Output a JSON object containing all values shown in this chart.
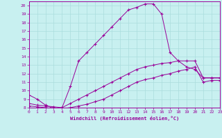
{
  "xlabel": "Windchill (Refroidissement éolien,°C)",
  "bg_color": "#c8f0f0",
  "line_color": "#990099",
  "grid_color": "#aadddd",
  "xlim": [
    0,
    23
  ],
  "ylim": [
    8,
    20.5
  ],
  "xticks": [
    0,
    1,
    2,
    3,
    4,
    5,
    6,
    7,
    8,
    9,
    10,
    11,
    12,
    13,
    14,
    15,
    16,
    17,
    18,
    19,
    20,
    21,
    22,
    23
  ],
  "yticks": [
    8,
    9,
    10,
    11,
    12,
    13,
    14,
    15,
    16,
    17,
    18,
    19,
    20
  ],
  "curve1_x": [
    0,
    1,
    2,
    3,
    4,
    5,
    6,
    7,
    8,
    9,
    10,
    11,
    12,
    13,
    14,
    15,
    16,
    17,
    18,
    19,
    20,
    21,
    22,
    23
  ],
  "curve1_y": [
    9.5,
    9.0,
    8.3,
    7.9,
    8.0,
    10.5,
    13.5,
    14.5,
    15.5,
    16.5,
    17.5,
    18.5,
    19.5,
    19.8,
    20.2,
    20.2,
    19.0,
    14.5,
    13.5,
    12.8,
    12.5,
    11.5,
    11.5,
    11.5
  ],
  "curve2_x": [
    0,
    1,
    2,
    3,
    4,
    5,
    6,
    7,
    8,
    9,
    10,
    11,
    12,
    13,
    14,
    15,
    16,
    17,
    18,
    19,
    20,
    21,
    22,
    23
  ],
  "curve2_y": [
    8.5,
    8.3,
    8.2,
    8.1,
    8.0,
    8.5,
    9.0,
    9.5,
    10.0,
    10.5,
    11.0,
    11.5,
    12.0,
    12.5,
    12.8,
    13.0,
    13.2,
    13.3,
    13.5,
    13.5,
    13.5,
    11.5,
    11.5,
    11.5
  ],
  "curve3_x": [
    0,
    1,
    2,
    3,
    4,
    5,
    6,
    7,
    8,
    9,
    10,
    11,
    12,
    13,
    14,
    15,
    16,
    17,
    18,
    19,
    20,
    21,
    22,
    23
  ],
  "curve3_y": [
    8.2,
    8.1,
    8.0,
    7.9,
    7.9,
    8.0,
    8.2,
    8.4,
    8.7,
    9.0,
    9.5,
    10.0,
    10.5,
    11.0,
    11.3,
    11.5,
    11.8,
    12.0,
    12.3,
    12.5,
    12.8,
    11.0,
    11.2,
    11.2
  ]
}
